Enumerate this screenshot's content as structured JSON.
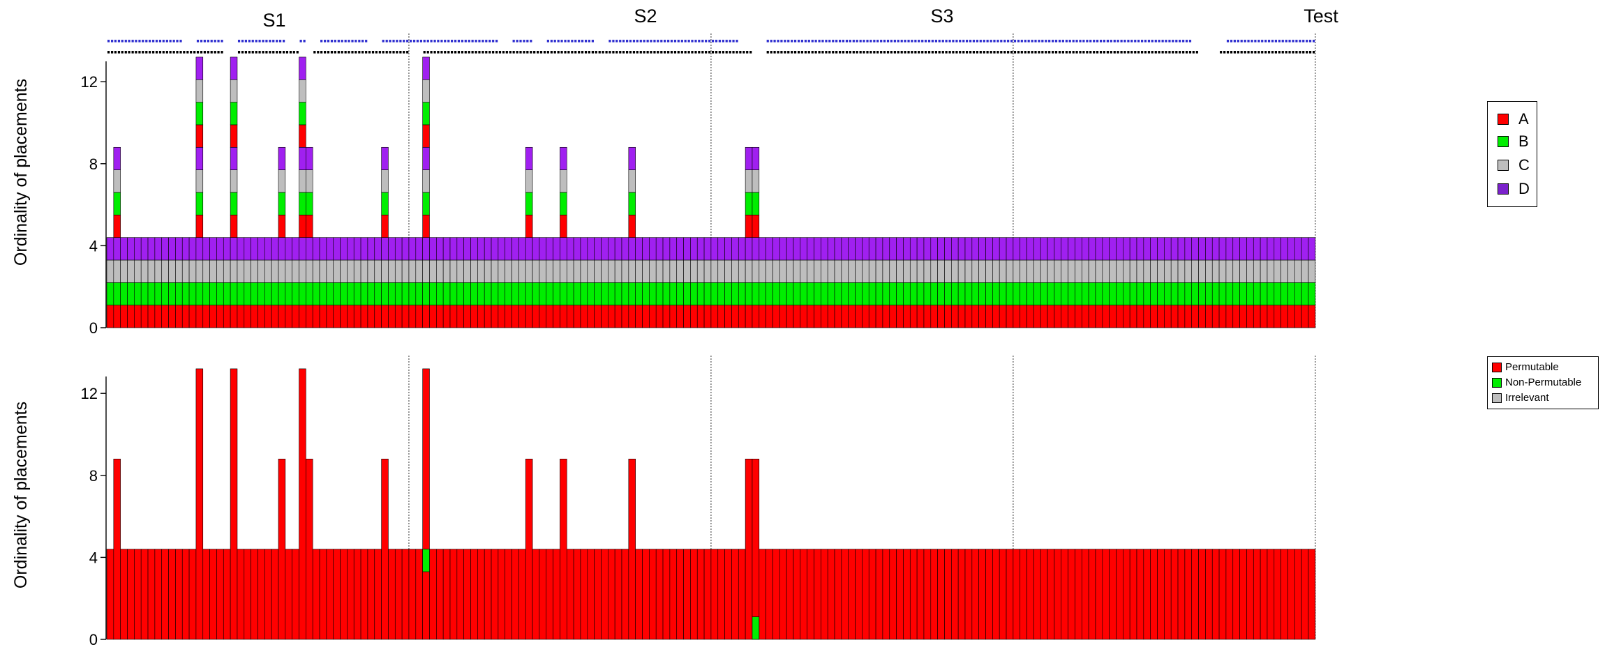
{
  "colors": {
    "A": "#ff0000",
    "B": "#00ee00",
    "C": "#bebebe",
    "D": "#a020f0",
    "permutable": "#ff0000",
    "non_permutable": "#00ee00",
    "irrelevant": "#bebebe",
    "dots_blue": "#3030d0",
    "dots_black": "#000000"
  },
  "chart_data": [
    {
      "type": "bar",
      "stacked": true,
      "ylabel": "Ordinality of placements",
      "xlabel": "",
      "ylim": [
        0,
        13.2
      ],
      "yticks": [
        "0",
        "4",
        "8",
        "12"
      ],
      "sessions": [
        {
          "label": "S1",
          "start": 1,
          "end": 44
        },
        {
          "label": "S2",
          "start": 45,
          "end": 88
        },
        {
          "label": "S3",
          "start": 89,
          "end": 132
        },
        {
          "label": "Test",
          "start": 133,
          "end": 176
        }
      ],
      "n_trials": 176,
      "base_height": 4.4,
      "segment_order": [
        "A",
        "B",
        "C",
        "D"
      ],
      "tall_trials": [
        {
          "trial": 2,
          "height": 8.8
        },
        {
          "trial": 14,
          "height": 13.2
        },
        {
          "trial": 19,
          "height": 13.2
        },
        {
          "trial": 26,
          "height": 8.8
        },
        {
          "trial": 29,
          "height": 13.2
        },
        {
          "trial": 30,
          "height": 8.8
        },
        {
          "trial": 41,
          "height": 8.8
        },
        {
          "trial": 47,
          "height": 13.2
        },
        {
          "trial": 62,
          "height": 8.8
        },
        {
          "trial": 67,
          "height": 8.8
        },
        {
          "trial": 77,
          "height": 8.8
        },
        {
          "trial": 94,
          "height": 8.8
        },
        {
          "trial": 95,
          "height": 8.8
        }
      ],
      "legend": [
        "A",
        "B",
        "C",
        "D"
      ],
      "legend_position": "right",
      "dot_rows": {
        "blue_gaps": [
          [
            12,
            13
          ],
          [
            18,
            19
          ],
          [
            27,
            28
          ],
          [
            30,
            31
          ],
          [
            39,
            40
          ],
          [
            58,
            59
          ],
          [
            63,
            64
          ],
          [
            72,
            73
          ],
          [
            93,
            96
          ],
          [
            159,
            163
          ]
        ],
        "black_gaps": [
          [
            18,
            19
          ],
          [
            29,
            30
          ],
          [
            45,
            46
          ],
          [
            95,
            96
          ],
          [
            160,
            162
          ]
        ]
      }
    },
    {
      "type": "bar",
      "ylabel": "Ordinality of placements",
      "xlabel": "",
      "ylim": [
        0,
        13.2
      ],
      "yticks": [
        "0",
        "4",
        "8",
        "12"
      ],
      "n_trials": 176,
      "series": [
        {
          "name": "Permutable",
          "color_key": "permutable"
        },
        {
          "name": "Non-Permutable",
          "color_key": "non_permutable"
        },
        {
          "name": "Irrelevant",
          "color_key": "irrelevant"
        }
      ],
      "base_height": 4.4,
      "tall_trials": [
        {
          "trial": 2,
          "height": 8.8
        },
        {
          "trial": 14,
          "height": 13.2
        },
        {
          "trial": 19,
          "height": 13.2
        },
        {
          "trial": 26,
          "height": 8.8
        },
        {
          "trial": 29,
          "height": 13.2
        },
        {
          "trial": 30,
          "height": 8.8
        },
        {
          "trial": 41,
          "height": 8.8
        },
        {
          "trial": 47,
          "height": 13.2
        },
        {
          "trial": 62,
          "height": 8.8
        },
        {
          "trial": 67,
          "height": 8.8
        },
        {
          "trial": 77,
          "height": 8.8
        },
        {
          "trial": 94,
          "height": 8.8
        },
        {
          "trial": 95,
          "height": 8.8
        }
      ],
      "non_permutable_segments": [
        {
          "trial": 47,
          "from": 3.3,
          "to": 4.4
        },
        {
          "trial": 95,
          "from": 0,
          "to": 1.1
        }
      ],
      "legend": [
        "Permutable",
        "Non-Permutable",
        "Irrelevant"
      ],
      "legend_position": "right"
    }
  ]
}
